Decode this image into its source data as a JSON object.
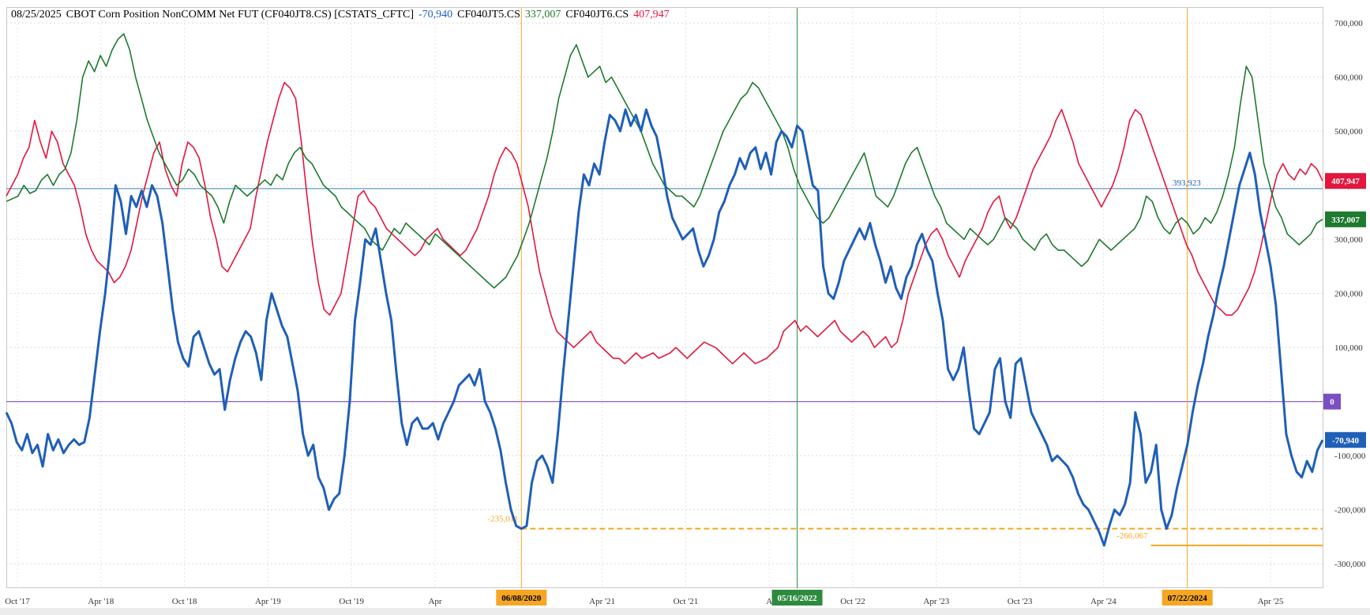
{
  "header": {
    "date": "08/25/2025",
    "title": "CBOT Corn Position NonCOMM Net FUT (CF040JT8.CS) [CSTATS_CFTC]",
    "blue_value": "-70,940",
    "green_code": "CF040JT5.CS",
    "green_value": "337,007",
    "red_code": "CF040JT6.CS",
    "red_value": "407,947"
  },
  "chart_data": {
    "type": "line",
    "x_tick_labels": [
      "Oct '17",
      "Apr '18",
      "Oct '18",
      "Apr '19",
      "Oct '19",
      "Apr",
      "Oct '20",
      "Apr '21",
      "Oct '21",
      "A",
      "Oct '22",
      "Apr '23",
      "Oct '23",
      "Apr '24",
      "Oct '24",
      "Apr '25"
    ],
    "y_tick_labels": [
      "700,000",
      "600,000",
      "500,000",
      "400,000",
      "300,000",
      "200,000",
      "100,000",
      "",
      "-100,000",
      "-200,000",
      "-300,000"
    ],
    "ylim": [
      -345000,
      728000
    ],
    "colors": {
      "blue": "#1f5fb8",
      "green": "#1e7a2e",
      "red": "#e3163e",
      "orange": "#f5a623",
      "purple": "#7b4fc4",
      "vgreen": "#2e8b3e",
      "hline": "#5a9bc8"
    },
    "series": [
      {
        "color_key": "blue",
        "values": [
          -20000,
          -40000,
          -75000,
          -90000,
          -60000,
          -95000,
          -80000,
          -120000,
          -60000,
          -90000,
          -70000,
          -95000,
          -80000,
          -70000,
          -80000,
          -75000,
          -30000,
          50000,
          130000,
          200000,
          290000,
          400000,
          370000,
          310000,
          380000,
          360000,
          390000,
          360000,
          400000,
          380000,
          330000,
          250000,
          170000,
          110000,
          80000,
          65000,
          120000,
          130000,
          100000,
          70000,
          50000,
          60000,
          -15000,
          40000,
          80000,
          110000,
          130000,
          120000,
          90000,
          40000,
          150000,
          200000,
          170000,
          140000,
          120000,
          70000,
          20000,
          -60000,
          -100000,
          -80000,
          -140000,
          -160000,
          -200000,
          -180000,
          -170000,
          -100000,
          0,
          150000,
          220000,
          300000,
          290000,
          320000,
          260000,
          200000,
          150000,
          50000,
          -40000,
          -80000,
          -40000,
          -30000,
          -50000,
          -50000,
          -40000,
          -70000,
          -40000,
          -20000,
          0,
          30000,
          40000,
          50000,
          30000,
          60000,
          0,
          -20000,
          -50000,
          -90000,
          -150000,
          -200000,
          -230000,
          -235011,
          -230000,
          -150000,
          -110000,
          -100000,
          -120000,
          -150000,
          -60000,
          50000,
          150000,
          250000,
          350000,
          420000,
          400000,
          440000,
          420000,
          480000,
          530000,
          520000,
          500000,
          540000,
          510000,
          530000,
          500000,
          540000,
          510000,
          490000,
          440000,
          380000,
          340000,
          320000,
          300000,
          310000,
          320000,
          280000,
          250000,
          270000,
          300000,
          350000,
          370000,
          400000,
          420000,
          450000,
          430000,
          460000,
          470000,
          430000,
          460000,
          420000,
          480000,
          500000,
          490000,
          470000,
          510000,
          500000,
          450000,
          400000,
          390000,
          250000,
          200000,
          190000,
          220000,
          260000,
          280000,
          300000,
          320000,
          300000,
          330000,
          290000,
          260000,
          220000,
          250000,
          210000,
          190000,
          230000,
          250000,
          290000,
          310000,
          280000,
          260000,
          200000,
          150000,
          60000,
          40000,
          60000,
          100000,
          20000,
          -50000,
          -60000,
          -40000,
          -20000,
          60000,
          80000,
          0,
          -30000,
          70000,
          80000,
          30000,
          -20000,
          -40000,
          -60000,
          -80000,
          -110000,
          -100000,
          -110000,
          -120000,
          -140000,
          -170000,
          -190000,
          -200000,
          -220000,
          -240000,
          -266067,
          -230000,
          -200000,
          -210000,
          -190000,
          -150000,
          -20000,
          -60000,
          -150000,
          -130000,
          -80000,
          -200000,
          -235000,
          -210000,
          -160000,
          -120000,
          -80000,
          -20000,
          30000,
          70000,
          120000,
          160000,
          210000,
          250000,
          300000,
          350000,
          400000,
          430000,
          460000,
          420000,
          350000,
          300000,
          250000,
          180000,
          60000,
          -60000,
          -100000,
          -130000,
          -140000,
          -110000,
          -130000,
          -90000,
          -70940
        ]
      },
      {
        "color_key": "green",
        "values": [
          370000,
          375000,
          380000,
          400000,
          385000,
          390000,
          410000,
          420000,
          400000,
          420000,
          430000,
          460000,
          520000,
          600000,
          630000,
          610000,
          640000,
          620000,
          650000,
          670000,
          680000,
          650000,
          600000,
          560000,
          520000,
          490000,
          460000,
          440000,
          420000,
          400000,
          410000,
          430000,
          420000,
          400000,
          390000,
          380000,
          360000,
          330000,
          370000,
          400000,
          390000,
          380000,
          390000,
          400000,
          410000,
          400000,
          420000,
          410000,
          440000,
          460000,
          470000,
          450000,
          440000,
          420000,
          400000,
          390000,
          380000,
          360000,
          350000,
          340000,
          330000,
          320000,
          300000,
          290000,
          280000,
          300000,
          320000,
          310000,
          330000,
          320000,
          310000,
          300000,
          290000,
          310000,
          300000,
          290000,
          280000,
          270000,
          260000,
          250000,
          240000,
          230000,
          220000,
          210000,
          220000,
          230000,
          250000,
          270000,
          300000,
          330000,
          370000,
          410000,
          450000,
          500000,
          560000,
          600000,
          640000,
          660000,
          630000,
          600000,
          610000,
          620000,
          590000,
          600000,
          580000,
          560000,
          540000,
          520000,
          500000,
          470000,
          440000,
          420000,
          400000,
          390000,
          380000,
          380000,
          370000,
          360000,
          380000,
          410000,
          440000,
          470000,
          500000,
          520000,
          540000,
          560000,
          570000,
          590000,
          580000,
          560000,
          540000,
          520000,
          500000,
          470000,
          430000,
          400000,
          380000,
          360000,
          340000,
          330000,
          340000,
          360000,
          380000,
          400000,
          420000,
          440000,
          460000,
          420000,
          380000,
          370000,
          360000,
          380000,
          410000,
          440000,
          460000,
          470000,
          440000,
          410000,
          380000,
          360000,
          330000,
          320000,
          310000,
          300000,
          320000,
          310000,
          300000,
          290000,
          300000,
          320000,
          340000,
          330000,
          320000,
          300000,
          290000,
          280000,
          300000,
          310000,
          290000,
          280000,
          280000,
          270000,
          260000,
          250000,
          260000,
          280000,
          300000,
          290000,
          280000,
          290000,
          300000,
          310000,
          320000,
          340000,
          380000,
          370000,
          340000,
          320000,
          310000,
          330000,
          340000,
          330000,
          310000,
          320000,
          340000,
          330000,
          350000,
          380000,
          420000,
          470000,
          550000,
          620000,
          600000,
          520000,
          440000,
          400000,
          360000,
          340000,
          310000,
          300000,
          290000,
          300000,
          310000,
          330000,
          337007
        ]
      },
      {
        "color_key": "red",
        "values": [
          380000,
          400000,
          420000,
          450000,
          470000,
          520000,
          480000,
          450000,
          500000,
          480000,
          440000,
          420000,
          400000,
          360000,
          310000,
          280000,
          260000,
          250000,
          240000,
          220000,
          230000,
          250000,
          280000,
          330000,
          380000,
          420000,
          460000,
          480000,
          430000,
          400000,
          380000,
          440000,
          480000,
          470000,
          450000,
          400000,
          340000,
          300000,
          250000,
          240000,
          260000,
          280000,
          300000,
          320000,
          380000,
          430000,
          480000,
          520000,
          560000,
          590000,
          580000,
          560000,
          480000,
          380000,
          290000,
          220000,
          170000,
          160000,
          180000,
          200000,
          260000,
          320000,
          380000,
          390000,
          370000,
          360000,
          340000,
          320000,
          310000,
          300000,
          290000,
          280000,
          270000,
          280000,
          300000,
          310000,
          320000,
          300000,
          290000,
          280000,
          270000,
          280000,
          300000,
          320000,
          350000,
          380000,
          420000,
          450000,
          470000,
          460000,
          440000,
          400000,
          360000,
          300000,
          240000,
          200000,
          160000,
          130000,
          120000,
          110000,
          100000,
          110000,
          120000,
          130000,
          110000,
          100000,
          90000,
          80000,
          80000,
          70000,
          80000,
          90000,
          80000,
          85000,
          90000,
          80000,
          85000,
          90000,
          100000,
          90000,
          80000,
          90000,
          100000,
          110000,
          105000,
          100000,
          90000,
          80000,
          70000,
          80000,
          90000,
          80000,
          70000,
          75000,
          80000,
          90000,
          100000,
          130000,
          140000,
          150000,
          130000,
          140000,
          130000,
          120000,
          130000,
          140000,
          150000,
          130000,
          120000,
          110000,
          120000,
          130000,
          120000,
          100000,
          110000,
          120000,
          100000,
          110000,
          150000,
          200000,
          230000,
          260000,
          290000,
          310000,
          320000,
          300000,
          270000,
          250000,
          230000,
          260000,
          280000,
          300000,
          320000,
          350000,
          370000,
          380000,
          340000,
          320000,
          340000,
          370000,
          400000,
          430000,
          450000,
          470000,
          490000,
          520000,
          540000,
          510000,
          480000,
          440000,
          420000,
          400000,
          380000,
          360000,
          380000,
          400000,
          430000,
          470000,
          520000,
          540000,
          530000,
          500000,
          470000,
          440000,
          410000,
          380000,
          350000,
          320000,
          290000,
          270000,
          240000,
          220000,
          200000,
          180000,
          170000,
          160000,
          160000,
          170000,
          190000,
          210000,
          240000,
          280000,
          330000,
          380000,
          420000,
          440000,
          420000,
          410000,
          430000,
          420000,
          440000,
          430000,
          407947
        ]
      }
    ],
    "horizontal_lines": [
      {
        "value": 393923,
        "color_key": "hline",
        "label": "393,923"
      },
      {
        "value": 0,
        "color_key": "purple"
      }
    ],
    "orange_levels": [
      {
        "value": -235011,
        "label": "-235,011",
        "dashed": true,
        "from_index": 99
      },
      {
        "value": -266067,
        "label": "-266,067",
        "dashed": false,
        "from_index": 220
      }
    ],
    "vertical_markers": [
      {
        "index": 99,
        "label": "06/08/2020",
        "color_key": "orange"
      },
      {
        "index": 152,
        "label": "05/16/2022",
        "color_key": "vgreen"
      },
      {
        "index": 227,
        "label": "07/22/2024",
        "color_key": "orange"
      }
    ],
    "right_badges": [
      {
        "value": 407947,
        "label": "407,947",
        "color_key": "red"
      },
      {
        "value": 337007,
        "label": "337,007",
        "color_key": "green"
      },
      {
        "value": 0,
        "label": "0",
        "color_key": "purple"
      },
      {
        "value": -70940,
        "label": "-70,940",
        "color_key": "blue"
      }
    ]
  }
}
